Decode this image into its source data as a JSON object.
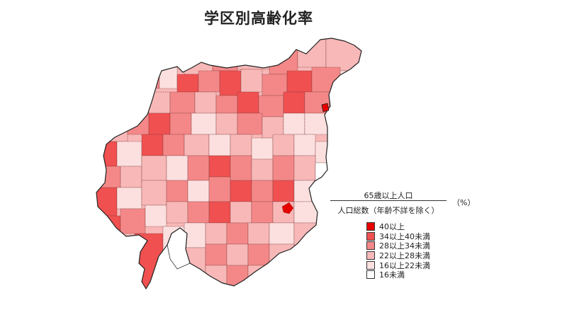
{
  "title": "学区別高齢化率",
  "formula": {
    "numerator": "65歳以上人口",
    "denominator": "人口総数（年齢不詳を除く）",
    "unit": "（%）"
  },
  "legend": [
    {
      "label": "40以上",
      "color": "#e60000"
    },
    {
      "label": "34以上40未満",
      "color": "#f05050"
    },
    {
      "label": "28以上34未満",
      "color": "#f48888"
    },
    {
      "label": "22以上28未満",
      "color": "#f8b8b8"
    },
    {
      "label": "16以上22未満",
      "color": "#fce0e0"
    },
    {
      "label": "16未満",
      "color": "#ffffff"
    }
  ]
}
